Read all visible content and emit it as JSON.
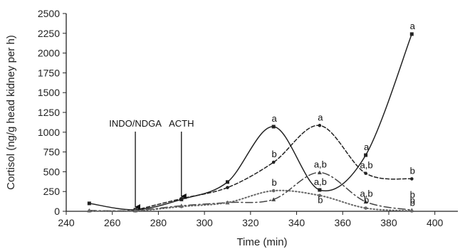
{
  "chart_data": {
    "type": "line",
    "title": "",
    "xlabel": "Time (min)",
    "ylabel": "Cortisol (ng/g head kidney per h)",
    "xlim": [
      240,
      410
    ],
    "ylim": [
      0,
      2500
    ],
    "xticks": [
      240,
      260,
      280,
      300,
      320,
      340,
      360,
      380,
      400
    ],
    "yticks": [
      0,
      250,
      500,
      750,
      1000,
      1250,
      1500,
      1750,
      2000,
      2250,
      2500
    ],
    "grid": false,
    "legend": "none",
    "series": [
      {
        "style": "solid",
        "marker": "square",
        "color": "#222222",
        "points": [
          [
            250,
            100
          ],
          [
            270,
            20
          ],
          [
            290,
            150
          ],
          [
            310,
            370
          ],
          [
            330,
            1070
          ],
          [
            350,
            270
          ],
          [
            370,
            710
          ],
          [
            390,
            2240
          ]
        ]
      },
      {
        "style": "dashed",
        "marker": "circle",
        "color": "#222222",
        "points": [
          [
            270,
            15
          ],
          [
            290,
            160
          ],
          [
            310,
            300
          ],
          [
            330,
            620
          ],
          [
            350,
            1085
          ],
          [
            370,
            480
          ],
          [
            390,
            410
          ]
        ]
      },
      {
        "style": "dash-dot",
        "marker": "triangle",
        "color": "#444444",
        "points": [
          [
            250,
            10
          ],
          [
            270,
            10
          ],
          [
            290,
            70
          ],
          [
            310,
            110
          ],
          [
            330,
            150
          ],
          [
            350,
            490
          ],
          [
            370,
            120
          ],
          [
            390,
            15
          ]
        ]
      },
      {
        "style": "dotted",
        "marker": "circle",
        "color": "#666666",
        "points": [
          [
            250,
            5
          ],
          [
            270,
            5
          ],
          [
            290,
            60
          ],
          [
            310,
            110
          ],
          [
            330,
            260
          ],
          [
            350,
            200
          ],
          [
            370,
            40
          ],
          [
            390,
            5
          ]
        ]
      }
    ],
    "annotations": [
      {
        "text": "INDO/NDGA",
        "x": 270
      },
      {
        "text": "ACTH",
        "x": 290
      }
    ],
    "sig_labels": [
      {
        "text": "a",
        "x": 330,
        "y": 1070
      },
      {
        "text": "b",
        "x": 330,
        "y": 620
      },
      {
        "text": "b",
        "x": 330,
        "y": 260
      },
      {
        "text": "a",
        "x": 350,
        "y": 1085
      },
      {
        "text": "a,b",
        "x": 350,
        "y": 490
      },
      {
        "text": "a,b",
        "x": 350,
        "y": 270
      },
      {
        "text": "b",
        "x": 350,
        "y": 40
      },
      {
        "text": "a",
        "x": 370,
        "y": 710
      },
      {
        "text": "a,b",
        "x": 370,
        "y": 480
      },
      {
        "text": "a,b",
        "x": 370,
        "y": 120
      },
      {
        "text": "b",
        "x": 370,
        "y": 40
      },
      {
        "text": "a",
        "x": 390,
        "y": 2240
      },
      {
        "text": "b",
        "x": 390,
        "y": 410
      },
      {
        "text": "b",
        "x": 390,
        "y": 110
      },
      {
        "text": "b",
        "x": 390,
        "y": 35
      },
      {
        "text": "b",
        "x": 390,
        "y": 5
      }
    ]
  }
}
